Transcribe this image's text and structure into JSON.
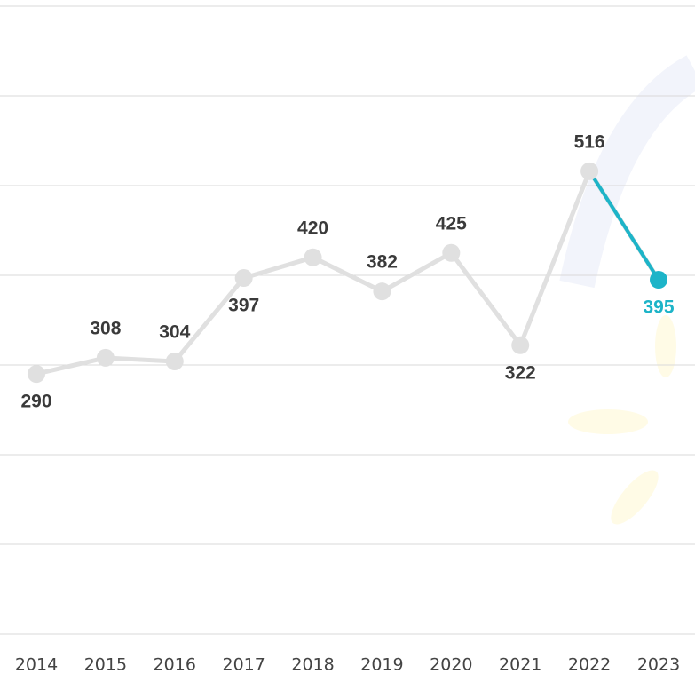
{
  "chart_data": {
    "type": "line",
    "categories": [
      "2014",
      "2015",
      "2016",
      "2017",
      "2018",
      "2019",
      "2020",
      "2021",
      "2022",
      "2023"
    ],
    "series": [
      {
        "color": "#e0e0e0",
        "values": [
          290,
          308,
          304,
          397,
          420,
          382,
          425,
          322,
          516,
          395
        ]
      }
    ],
    "highlight_color": "#1db4c8",
    "ylim": [
      0,
      700
    ],
    "yticks": [
      0,
      100,
      200,
      300,
      400,
      500,
      600,
      700
    ],
    "grid": true
  }
}
